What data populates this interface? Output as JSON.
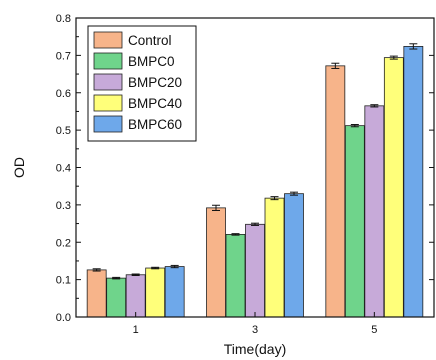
{
  "chart_data": {
    "type": "bar",
    "title": "",
    "xlabel": "Time(day)",
    "ylabel": "OD",
    "categories": [
      "1",
      "3",
      "5"
    ],
    "ylim": [
      0.0,
      0.8
    ],
    "yticks": [
      "0.0",
      "0.1",
      "0.2",
      "0.3",
      "0.4",
      "0.5",
      "0.6",
      "0.7",
      "0.8"
    ],
    "grid": false,
    "legend_position": "top-left",
    "error_bars": true,
    "series": [
      {
        "name": "Control",
        "color": "#f7b48a",
        "values": [
          0.126,
          0.292,
          0.672
        ],
        "errors": [
          0.003,
          0.007,
          0.007
        ]
      },
      {
        "name": "BMPC0",
        "color": "#6fd48b",
        "values": [
          0.104,
          0.221,
          0.512
        ],
        "errors": [
          0.002,
          0.002,
          0.003
        ]
      },
      {
        "name": "BMPC20",
        "color": "#c7aad9",
        "values": [
          0.113,
          0.248,
          0.565
        ],
        "errors": [
          0.002,
          0.003,
          0.003
        ]
      },
      {
        "name": "BMPC40",
        "color": "#ffff7a",
        "values": [
          0.131,
          0.318,
          0.694
        ],
        "errors": [
          0.002,
          0.004,
          0.004
        ]
      },
      {
        "name": "BMPC60",
        "color": "#6ea8ea",
        "values": [
          0.135,
          0.33,
          0.724
        ],
        "errors": [
          0.003,
          0.004,
          0.007
        ]
      }
    ]
  }
}
